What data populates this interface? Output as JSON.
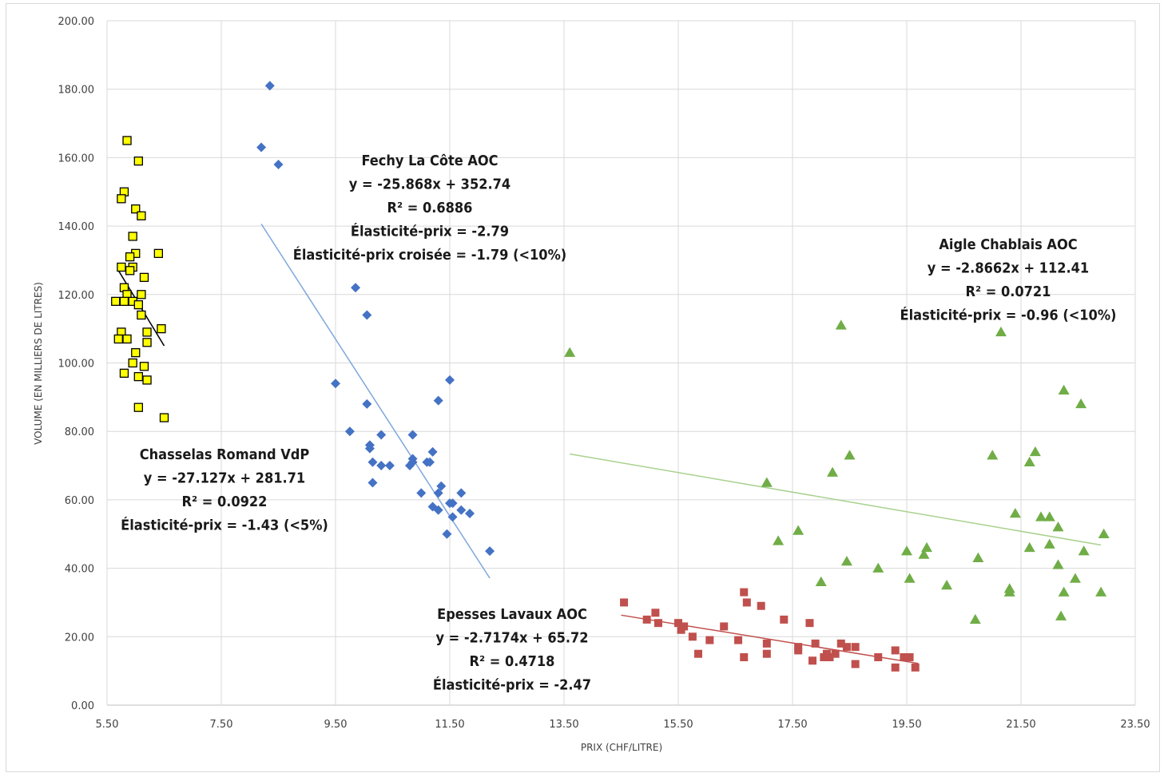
{
  "chart_data": {
    "type": "scatter",
    "xlabel": "PRIX (CHF/LITRE)",
    "ylabel": "VOLUME (EN MILLIERS DE LITRES)",
    "xlim": [
      5.5,
      23.5
    ],
    "ylim": [
      0,
      200
    ],
    "x_ticks": [
      "5.50",
      "7.50",
      "9.50",
      "11.50",
      "13.50",
      "15.50",
      "17.50",
      "19.50",
      "21.50",
      "23.50"
    ],
    "y_ticks": [
      "0.00",
      "20.00",
      "40.00",
      "60.00",
      "80.00",
      "100.00",
      "120.00",
      "140.00",
      "160.00",
      "180.00",
      "200.00"
    ],
    "grid": true,
    "series": [
      {
        "name": "Chasselas Romand VdP",
        "marker": "square",
        "color": "#ffff00",
        "stroke": "#000000",
        "trend_color": "#000000",
        "trend": {
          "x": [
            5.7,
            6.5
          ],
          "y": [
            127.0,
            105.0
          ]
        },
        "annotation": [
          "Chasselas Romand VdP",
          "y = -27.127x + 281.71",
          "R² = 0.0922",
          "Élasticité-prix = -1.43 (<5%)"
        ],
        "points": [
          [
            5.85,
            165
          ],
          [
            6.05,
            159
          ],
          [
            5.8,
            150
          ],
          [
            5.75,
            148
          ],
          [
            6.0,
            145
          ],
          [
            6.1,
            143
          ],
          [
            5.95,
            137
          ],
          [
            6.4,
            132
          ],
          [
            6.0,
            132
          ],
          [
            5.9,
            131
          ],
          [
            5.75,
            128
          ],
          [
            5.95,
            128
          ],
          [
            5.9,
            127
          ],
          [
            6.15,
            125
          ],
          [
            5.8,
            122
          ],
          [
            5.85,
            120
          ],
          [
            6.1,
            120
          ],
          [
            5.8,
            118
          ],
          [
            5.65,
            118
          ],
          [
            5.95,
            118
          ],
          [
            6.05,
            117
          ],
          [
            6.1,
            114
          ],
          [
            5.75,
            109
          ],
          [
            6.2,
            109
          ],
          [
            6.45,
            110
          ],
          [
            5.7,
            107
          ],
          [
            5.85,
            107
          ],
          [
            6.2,
            106
          ],
          [
            6.0,
            103
          ],
          [
            5.95,
            100
          ],
          [
            6.15,
            99
          ],
          [
            5.8,
            97
          ],
          [
            6.05,
            96
          ],
          [
            6.2,
            95
          ],
          [
            6.05,
            87
          ],
          [
            6.5,
            84
          ]
        ]
      },
      {
        "name": "Fechy La Côte AOC",
        "marker": "diamond",
        "color": "#4472c4",
        "trend_color": "#7ea6dc",
        "trend": {
          "x": [
            8.2,
            12.2
          ],
          "y": [
            140.6,
            37.1
          ]
        },
        "annotation": [
          "Fechy La Côte AOC",
          "y = -25.868x + 352.74",
          "R² = 0.6886",
          "Élasticité-prix = -2.79",
          "Élasticité-prix croisée = -1.79 (<10%)"
        ],
        "points": [
          [
            8.35,
            181
          ],
          [
            8.2,
            163
          ],
          [
            8.5,
            158
          ],
          [
            9.85,
            122
          ],
          [
            10.05,
            114
          ],
          [
            11.5,
            95
          ],
          [
            9.5,
            94
          ],
          [
            11.3,
            89
          ],
          [
            10.05,
            88
          ],
          [
            9.75,
            80
          ],
          [
            10.3,
            79
          ],
          [
            10.85,
            79
          ],
          [
            11.2,
            74
          ],
          [
            10.1,
            76
          ],
          [
            10.1,
            75
          ],
          [
            10.15,
            71
          ],
          [
            10.3,
            70
          ],
          [
            10.45,
            70
          ],
          [
            10.85,
            72
          ],
          [
            10.85,
            71
          ],
          [
            11.1,
            71
          ],
          [
            11.15,
            71
          ],
          [
            10.8,
            70
          ],
          [
            10.15,
            65
          ],
          [
            11.35,
            64
          ],
          [
            11.3,
            62
          ],
          [
            11.0,
            62
          ],
          [
            11.7,
            62
          ],
          [
            11.5,
            59
          ],
          [
            11.55,
            59
          ],
          [
            11.2,
            58
          ],
          [
            11.3,
            57
          ],
          [
            11.7,
            57
          ],
          [
            11.85,
            56
          ],
          [
            11.55,
            55
          ],
          [
            11.45,
            50
          ],
          [
            12.2,
            45
          ]
        ]
      },
      {
        "name": "Aigle Chablais AOC",
        "marker": "triangle",
        "color": "#70ad47",
        "trend_color": "#a9d18e",
        "trend": {
          "x": [
            13.6,
            22.9
          ],
          "y": [
            73.4,
            46.8
          ]
        },
        "annotation": [
          "Aigle Chablais AOC",
          "y = -2.8662x + 112.41",
          "R² = 0.0721",
          "Élasticité-prix = -0.96 (<10%)"
        ],
        "points": [
          [
            13.6,
            103
          ],
          [
            18.35,
            111
          ],
          [
            21.15,
            109
          ],
          [
            22.25,
            92
          ],
          [
            22.55,
            88
          ],
          [
            18.5,
            73
          ],
          [
            21.0,
            73
          ],
          [
            21.75,
            74
          ],
          [
            21.65,
            71
          ],
          [
            18.2,
            68
          ],
          [
            17.05,
            65
          ],
          [
            21.4,
            56
          ],
          [
            21.85,
            55
          ],
          [
            22.0,
            55
          ],
          [
            22.15,
            52
          ],
          [
            17.6,
            51
          ],
          [
            22.95,
            50
          ],
          [
            17.25,
            48
          ],
          [
            22.0,
            47
          ],
          [
            21.65,
            46
          ],
          [
            19.85,
            46
          ],
          [
            19.5,
            45
          ],
          [
            22.6,
            45
          ],
          [
            19.8,
            44
          ],
          [
            20.75,
            43
          ],
          [
            18.45,
            42
          ],
          [
            22.15,
            41
          ],
          [
            19.0,
            40
          ],
          [
            19.55,
            37
          ],
          [
            22.45,
            37
          ],
          [
            18.0,
            36
          ],
          [
            20.2,
            35
          ],
          [
            21.3,
            34
          ],
          [
            21.3,
            33
          ],
          [
            22.25,
            33
          ],
          [
            22.9,
            33
          ],
          [
            20.7,
            25
          ],
          [
            22.2,
            26
          ]
        ]
      },
      {
        "name": "Epesses Lavaux AOC",
        "marker": "square",
        "color": "#c0504d",
        "trend_color": "#c0504d",
        "trend": {
          "x": [
            14.5,
            19.7
          ],
          "y": [
            26.3,
            12.2
          ]
        },
        "annotation": [
          "Epesses Lavaux AOC",
          "y = -2.7174x + 65.72",
          "R² = 0.4718",
          "Élasticité-prix = -2.47"
        ],
        "points": [
          [
            14.55,
            30
          ],
          [
            16.65,
            33
          ],
          [
            16.7,
            30
          ],
          [
            16.95,
            29
          ],
          [
            15.1,
            27
          ],
          [
            14.95,
            25
          ],
          [
            15.15,
            24
          ],
          [
            15.5,
            24
          ],
          [
            15.6,
            23
          ],
          [
            17.35,
            25
          ],
          [
            17.8,
            24
          ],
          [
            16.3,
            23
          ],
          [
            15.55,
            22
          ],
          [
            15.75,
            20
          ],
          [
            16.55,
            19
          ],
          [
            16.05,
            19
          ],
          [
            17.05,
            18
          ],
          [
            17.9,
            18
          ],
          [
            18.35,
            18
          ],
          [
            18.45,
            17
          ],
          [
            17.6,
            17
          ],
          [
            17.6,
            16
          ],
          [
            18.1,
            15
          ],
          [
            18.25,
            15
          ],
          [
            18.15,
            14
          ],
          [
            18.05,
            14
          ],
          [
            18.6,
            17
          ],
          [
            19.3,
            16
          ],
          [
            19.55,
            14
          ],
          [
            19.45,
            14
          ],
          [
            19.0,
            14
          ],
          [
            17.05,
            15
          ],
          [
            16.65,
            14
          ],
          [
            17.85,
            13
          ],
          [
            18.6,
            12
          ],
          [
            19.65,
            11
          ],
          [
            19.3,
            11
          ],
          [
            15.85,
            15
          ]
        ]
      }
    ]
  }
}
